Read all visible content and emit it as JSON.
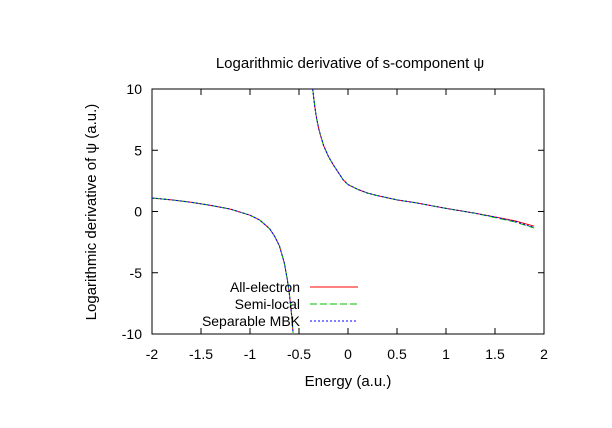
{
  "chart_data": {
    "type": "line",
    "title": "Logarithmic derivative of s-component ψ",
    "xlabel": "Energy (a.u.)",
    "ylabel": "Logarithmic derivative of ψ (a.u.)",
    "xlim": [
      -2,
      2
    ],
    "ylim": [
      -10,
      10
    ],
    "x_ticks": [
      -2,
      -1.5,
      -1,
      -0.5,
      0,
      0.5,
      1,
      1.5,
      2
    ],
    "x_tick_labels": [
      "-2",
      "-1.5",
      "-1",
      "-0.5",
      "0",
      "0.5",
      "1",
      "1.5",
      "2"
    ],
    "y_ticks": [
      -10,
      -5,
      0,
      5,
      10
    ],
    "y_tick_labels": [
      "-10",
      "-5",
      "0",
      "5",
      "10"
    ],
    "grid": false,
    "legend_position": "bottom-left",
    "colors": {
      "all_electron": "#ff0000",
      "semi_local": "#00c000",
      "separable_mbk": "#0000ff",
      "frame": "#000000"
    },
    "series": [
      {
        "name": "All-electron",
        "style": "solid",
        "branches": [
          {
            "x": [
              -2.0,
              -1.8,
              -1.6,
              -1.4,
              -1.2,
              -1.0,
              -0.9,
              -0.8,
              -0.75,
              -0.7,
              -0.65,
              -0.62,
              -0.6,
              -0.58,
              -0.56
            ],
            "y": [
              1.1,
              0.95,
              0.75,
              0.5,
              0.2,
              -0.3,
              -0.7,
              -1.4,
              -2.0,
              -2.8,
              -4.2,
              -5.5,
              -6.6,
              -8.1,
              -9.9
            ]
          },
          {
            "x": [
              -0.36,
              -0.34,
              -0.32,
              -0.3,
              -0.28,
              -0.25,
              -0.2,
              -0.15,
              -0.1,
              -0.05,
              0.0,
              0.1,
              0.2,
              0.3,
              0.5,
              0.7,
              1.0,
              1.3,
              1.5,
              1.7,
              1.9
            ],
            "y": [
              10,
              8.6,
              7.6,
              6.8,
              6.2,
              5.4,
              4.5,
              3.8,
              3.2,
              2.6,
              2.2,
              1.8,
              1.5,
              1.3,
              0.95,
              0.7,
              0.25,
              -0.15,
              -0.45,
              -0.75,
              -1.2
            ]
          }
        ]
      },
      {
        "name": "Semi-local",
        "style": "dashed",
        "branches": [
          {
            "x": [
              -2.0,
              -1.8,
              -1.6,
              -1.4,
              -1.2,
              -1.0,
              -0.9,
              -0.8,
              -0.75,
              -0.7,
              -0.65,
              -0.62,
              -0.6,
              -0.58,
              -0.56
            ],
            "y": [
              1.1,
              0.95,
              0.75,
              0.5,
              0.2,
              -0.3,
              -0.7,
              -1.4,
              -2.0,
              -2.8,
              -4.2,
              -5.5,
              -6.6,
              -8.1,
              -9.9
            ]
          },
          {
            "x": [
              -0.36,
              -0.34,
              -0.32,
              -0.3,
              -0.28,
              -0.25,
              -0.2,
              -0.15,
              -0.1,
              -0.05,
              0.0,
              0.1,
              0.2,
              0.3,
              0.5,
              0.7,
              1.0,
              1.3,
              1.5,
              1.7,
              1.9
            ],
            "y": [
              10,
              8.6,
              7.6,
              6.8,
              6.2,
              5.4,
              4.5,
              3.8,
              3.2,
              2.6,
              2.2,
              1.8,
              1.5,
              1.3,
              0.95,
              0.7,
              0.25,
              -0.15,
              -0.5,
              -0.85,
              -1.35
            ]
          }
        ]
      },
      {
        "name": "Separable MBK",
        "style": "dotted",
        "branches": [
          {
            "x": [
              -2.0,
              -1.8,
              -1.6,
              -1.4,
              -1.2,
              -1.0,
              -0.9,
              -0.8,
              -0.75,
              -0.7,
              -0.65,
              -0.62,
              -0.6,
              -0.58,
              -0.56
            ],
            "y": [
              1.1,
              0.95,
              0.75,
              0.5,
              0.2,
              -0.3,
              -0.7,
              -1.4,
              -2.0,
              -2.8,
              -4.2,
              -5.5,
              -6.6,
              -8.1,
              -9.9
            ]
          },
          {
            "x": [
              -0.36,
              -0.34,
              -0.32,
              -0.3,
              -0.28,
              -0.25,
              -0.2,
              -0.15,
              -0.1,
              -0.05,
              0.0,
              0.1,
              0.2,
              0.3,
              0.5,
              0.7,
              1.0,
              1.3,
              1.5,
              1.7,
              1.9
            ],
            "y": [
              10,
              8.6,
              7.6,
              6.8,
              6.2,
              5.4,
              4.5,
              3.8,
              3.2,
              2.6,
              2.2,
              1.8,
              1.5,
              1.3,
              0.95,
              0.7,
              0.25,
              -0.15,
              -0.45,
              -0.8,
              -1.3
            ]
          }
        ]
      }
    ]
  }
}
